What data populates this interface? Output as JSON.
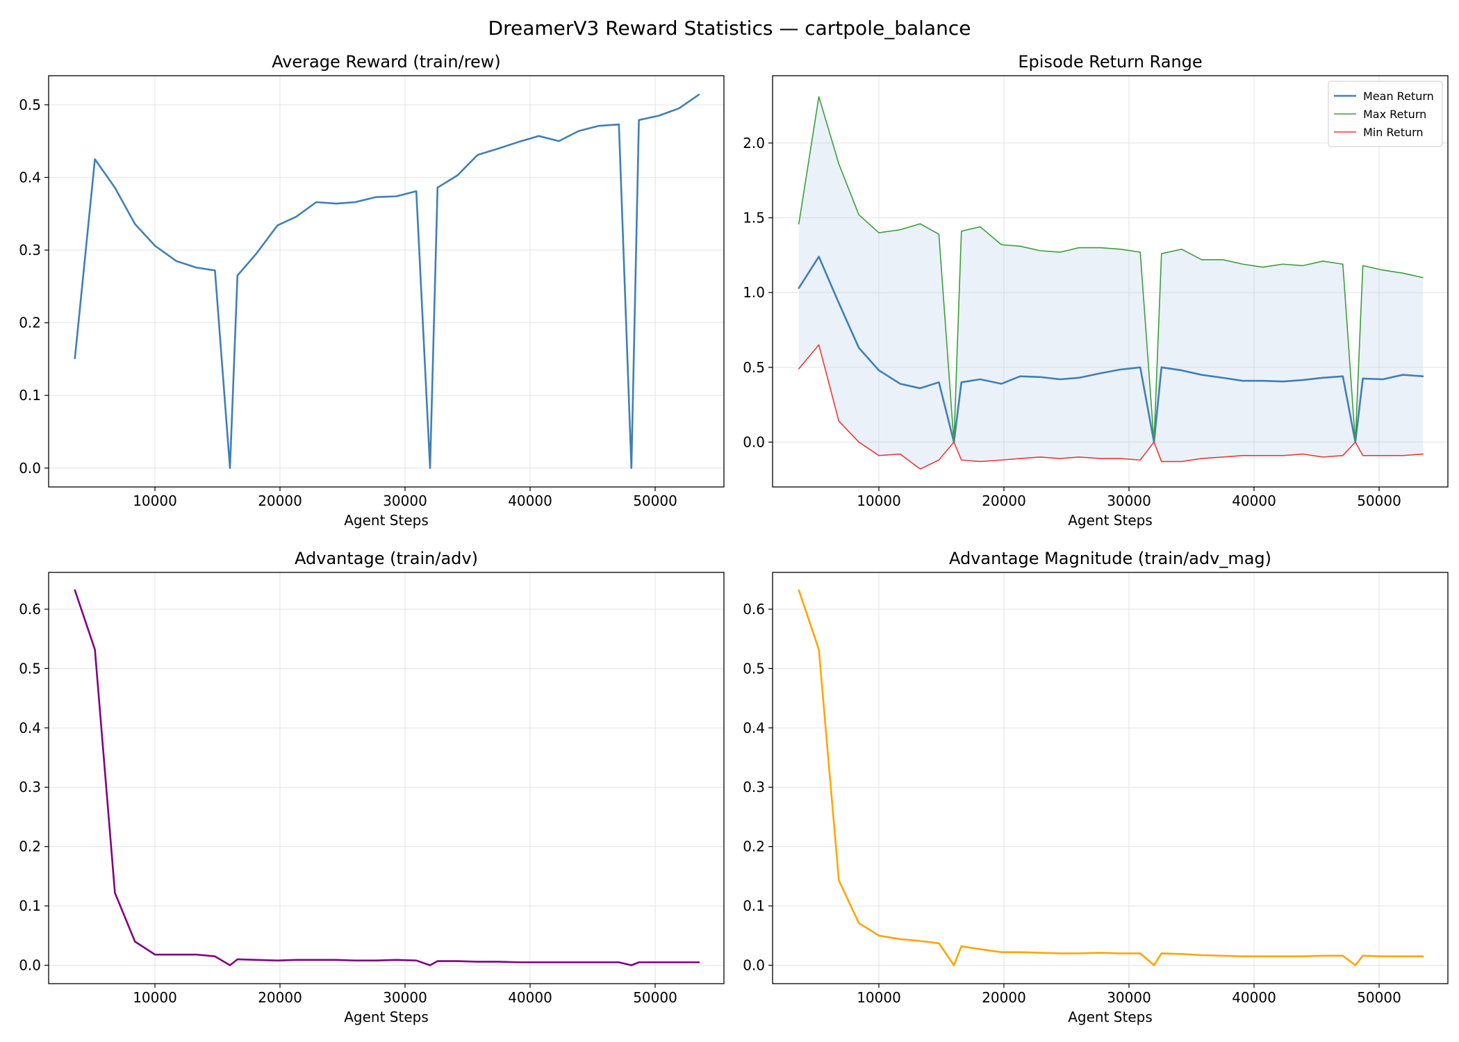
{
  "figure": {
    "suptitle": "DreamerV3 Reward Statistics — cartpole_balance"
  },
  "chart_data": [
    {
      "type": "line",
      "title": "Average Reward (train/rew)",
      "xlabel": "Agent Steps",
      "ylabel": "",
      "xlim": [
        1500,
        55500
      ],
      "ylim": [
        -0.026,
        0.54
      ],
      "xticks": [
        10000,
        20000,
        30000,
        40000,
        50000
      ],
      "yticks": [
        0.0,
        0.1,
        0.2,
        0.3,
        0.4,
        0.5
      ],
      "ytick_decimals": 1,
      "grid": true,
      "series": [
        {
          "color": "#3f7fb5",
          "x": [
            3600,
            5200,
            6800,
            8400,
            10000,
            11700,
            13300,
            14800,
            16000,
            16600,
            18100,
            19800,
            21300,
            22900,
            24500,
            26000,
            27700,
            29300,
            30900,
            32000,
            32600,
            34200,
            35800,
            37500,
            39100,
            40700,
            42300,
            43900,
            45500,
            47100,
            48100,
            48700,
            50300,
            51900,
            53500
          ],
          "y": [
            0.151,
            0.425,
            0.386,
            0.336,
            0.306,
            0.285,
            0.276,
            0.272,
            0.0,
            0.265,
            0.295,
            0.334,
            0.346,
            0.366,
            0.364,
            0.366,
            0.373,
            0.374,
            0.381,
            0.0,
            0.386,
            0.403,
            0.431,
            0.44,
            0.449,
            0.457,
            0.45,
            0.464,
            0.471,
            0.473,
            0.0,
            0.479,
            0.485,
            0.495,
            0.514
          ]
        }
      ]
    },
    {
      "type": "line",
      "title": "Episode Return Range",
      "xlabel": "Agent Steps",
      "ylabel": "",
      "xlim": [
        1500,
        55500
      ],
      "ylim": [
        -0.3,
        2.45
      ],
      "xticks": [
        10000,
        20000,
        30000,
        40000,
        50000
      ],
      "yticks": [
        0.0,
        0.5,
        1.0,
        1.5,
        2.0
      ],
      "ytick_decimals": 1,
      "grid": true,
      "legend": "top-right",
      "fill_between": {
        "lower": "Min Return",
        "upper": "Max Return",
        "color": "#b0c8e2"
      },
      "series": [
        {
          "name": "Mean Return",
          "color": "#3f7fb5",
          "x": [
            3600,
            5200,
            6800,
            8400,
            10000,
            11700,
            13300,
            14800,
            16000,
            16600,
            18100,
            19800,
            21300,
            22900,
            24500,
            26000,
            27700,
            29300,
            30900,
            32000,
            32600,
            34200,
            35800,
            37500,
            39100,
            40700,
            42300,
            43900,
            45500,
            47100,
            48100,
            48700,
            50300,
            51900,
            53500
          ],
          "y": [
            1.03,
            1.24,
            0.93,
            0.63,
            0.48,
            0.39,
            0.36,
            0.4,
            0.0,
            0.4,
            0.42,
            0.39,
            0.44,
            0.435,
            0.42,
            0.43,
            0.46,
            0.485,
            0.5,
            0.0,
            0.5,
            0.48,
            0.45,
            0.43,
            0.41,
            0.41,
            0.405,
            0.415,
            0.43,
            0.44,
            0.0,
            0.425,
            0.42,
            0.45,
            0.44
          ]
        },
        {
          "name": "Max Return",
          "color": "#3a9e3a",
          "x": [
            3600,
            5200,
            6800,
            8400,
            10000,
            11700,
            13300,
            14800,
            16000,
            16600,
            18100,
            19800,
            21300,
            22900,
            24500,
            26000,
            27700,
            29300,
            30900,
            32000,
            32600,
            34200,
            35800,
            37500,
            39100,
            40700,
            42300,
            43900,
            45500,
            47100,
            48100,
            48700,
            50300,
            51900,
            53500
          ],
          "y": [
            1.46,
            2.31,
            1.86,
            1.52,
            1.4,
            1.42,
            1.46,
            1.39,
            0.0,
            1.41,
            1.44,
            1.32,
            1.31,
            1.28,
            1.27,
            1.3,
            1.3,
            1.29,
            1.27,
            0.0,
            1.26,
            1.29,
            1.22,
            1.22,
            1.19,
            1.17,
            1.19,
            1.18,
            1.21,
            1.19,
            0.0,
            1.18,
            1.15,
            1.13,
            1.1
          ]
        },
        {
          "name": "Min Return",
          "color": "#e8393a",
          "x": [
            3600,
            5200,
            6800,
            8400,
            10000,
            11700,
            13300,
            14800,
            16000,
            16600,
            18100,
            19800,
            21300,
            22900,
            24500,
            26000,
            27700,
            29300,
            30900,
            32000,
            32600,
            34200,
            35800,
            37500,
            39100,
            40700,
            42300,
            43900,
            45500,
            47100,
            48100,
            48700,
            50300,
            51900,
            53500
          ],
          "y": [
            0.49,
            0.65,
            0.14,
            0.0,
            -0.09,
            -0.08,
            -0.18,
            -0.12,
            0.0,
            -0.12,
            -0.13,
            -0.12,
            -0.11,
            -0.1,
            -0.11,
            -0.1,
            -0.11,
            -0.11,
            -0.12,
            0.0,
            -0.13,
            -0.13,
            -0.11,
            -0.1,
            -0.09,
            -0.09,
            -0.09,
            -0.08,
            -0.1,
            -0.09,
            0.0,
            -0.09,
            -0.09,
            -0.09,
            -0.08
          ]
        }
      ]
    },
    {
      "type": "line",
      "title": "Advantage (train/adv)",
      "xlabel": "Agent Steps",
      "ylabel": "",
      "xlim": [
        1500,
        55500
      ],
      "ylim": [
        -0.031,
        0.662
      ],
      "xticks": [
        10000,
        20000,
        30000,
        40000,
        50000
      ],
      "yticks": [
        0.0,
        0.1,
        0.2,
        0.3,
        0.4,
        0.5,
        0.6
      ],
      "ytick_decimals": 1,
      "grid": true,
      "series": [
        {
          "color": "#800080",
          "x": [
            3600,
            5200,
            6800,
            8400,
            10000,
            11700,
            13300,
            14800,
            16000,
            16600,
            18100,
            19800,
            21300,
            22900,
            24500,
            26000,
            27700,
            29300,
            30900,
            32000,
            32600,
            34200,
            35800,
            37500,
            39100,
            40700,
            42300,
            43900,
            45500,
            47100,
            48100,
            48700,
            50300,
            51900,
            53500
          ],
          "y": [
            0.632,
            0.532,
            0.122,
            0.04,
            0.018,
            0.018,
            0.018,
            0.015,
            0.0,
            0.01,
            0.009,
            0.008,
            0.009,
            0.009,
            0.009,
            0.008,
            0.008,
            0.009,
            0.008,
            0.0,
            0.007,
            0.007,
            0.006,
            0.006,
            0.005,
            0.005,
            0.005,
            0.005,
            0.005,
            0.005,
            0.0,
            0.005,
            0.005,
            0.005,
            0.005
          ]
        }
      ]
    },
    {
      "type": "line",
      "title": "Advantage Magnitude (train/adv_mag)",
      "xlabel": "Agent Steps",
      "ylabel": "",
      "xlim": [
        1500,
        55500
      ],
      "ylim": [
        -0.031,
        0.662
      ],
      "xticks": [
        10000,
        20000,
        30000,
        40000,
        50000
      ],
      "yticks": [
        0.0,
        0.1,
        0.2,
        0.3,
        0.4,
        0.5,
        0.6
      ],
      "ytick_decimals": 1,
      "grid": true,
      "series": [
        {
          "color": "#ffa500",
          "x": [
            3600,
            5200,
            6800,
            8400,
            10000,
            11700,
            13300,
            14800,
            16000,
            16600,
            18100,
            19800,
            21300,
            22900,
            24500,
            26000,
            27700,
            29300,
            30900,
            32000,
            32600,
            34200,
            35800,
            37500,
            39100,
            40700,
            42300,
            43900,
            45500,
            47100,
            48100,
            48700,
            50300,
            51900,
            53500
          ],
          "y": [
            0.632,
            0.532,
            0.143,
            0.071,
            0.05,
            0.044,
            0.041,
            0.037,
            0.0,
            0.032,
            0.027,
            0.022,
            0.022,
            0.021,
            0.02,
            0.02,
            0.021,
            0.02,
            0.02,
            0.0,
            0.02,
            0.019,
            0.017,
            0.016,
            0.015,
            0.015,
            0.015,
            0.015,
            0.016,
            0.016,
            0.0,
            0.016,
            0.015,
            0.015,
            0.015
          ]
        }
      ]
    }
  ]
}
